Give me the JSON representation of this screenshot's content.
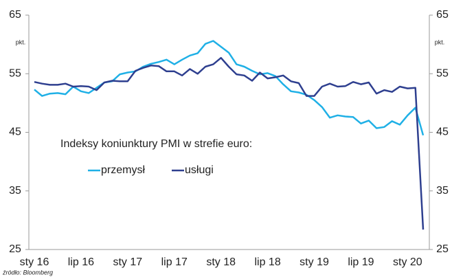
{
  "chart_data": {
    "type": "line",
    "title": "Indeksy koniunktury PMI w strefie euro:",
    "y_unit": "pkt.",
    "y2_unit": "pkt.",
    "source": "źródło: Bloomberg",
    "categories": [
      "sty 16",
      null,
      null,
      null,
      null,
      null,
      "lip 16",
      null,
      null,
      null,
      null,
      null,
      "sty 17",
      null,
      null,
      null,
      null,
      null,
      "lip 17",
      null,
      null,
      null,
      null,
      null,
      "sty 18",
      null,
      null,
      null,
      null,
      null,
      "lip 18",
      null,
      null,
      null,
      null,
      null,
      "sty 19",
      null,
      null,
      null,
      null,
      null,
      "lip 19",
      null,
      null,
      null,
      null,
      null,
      "sty 20",
      null,
      null
    ],
    "series": [
      {
        "name": "przemysł",
        "color": "#1fb0e6",
        "values": [
          52.3,
          51.2,
          51.6,
          51.7,
          51.5,
          52.8,
          52.0,
          51.7,
          52.6,
          53.5,
          53.7,
          54.9,
          55.2,
          55.4,
          56.2,
          56.7,
          57.0,
          57.4,
          56.6,
          57.4,
          58.1,
          58.5,
          60.1,
          60.6,
          59.6,
          58.6,
          56.6,
          56.2,
          55.5,
          54.9,
          55.1,
          54.6,
          53.2,
          52.0,
          51.8,
          51.4,
          50.5,
          49.3,
          47.5,
          47.9,
          47.7,
          47.6,
          46.5,
          47.0,
          45.7,
          45.9,
          46.9,
          46.3,
          47.9,
          49.2,
          44.5
        ]
      },
      {
        "name": "usługi",
        "color": "#2e3f8f",
        "values": [
          53.6,
          53.3,
          53.1,
          53.1,
          53.3,
          52.8,
          52.9,
          52.8,
          52.2,
          53.5,
          53.8,
          53.7,
          53.7,
          55.5,
          56.0,
          56.4,
          56.3,
          55.4,
          55.4,
          54.7,
          55.8,
          55.0,
          56.2,
          56.6,
          57.7,
          56.2,
          54.9,
          54.7,
          53.8,
          55.2,
          54.2,
          54.4,
          54.7,
          53.7,
          53.4,
          51.2,
          51.2,
          52.8,
          53.3,
          52.8,
          52.9,
          53.6,
          53.2,
          53.5,
          51.6,
          52.2,
          51.9,
          52.8,
          52.5,
          52.6,
          28.4
        ]
      }
    ],
    "ylim": [
      25,
      65
    ],
    "yticks": [
      25,
      35,
      45,
      55,
      65
    ],
    "y2lim": [
      25,
      65
    ],
    "y2ticks": [
      25,
      35,
      45,
      55,
      65
    ]
  }
}
